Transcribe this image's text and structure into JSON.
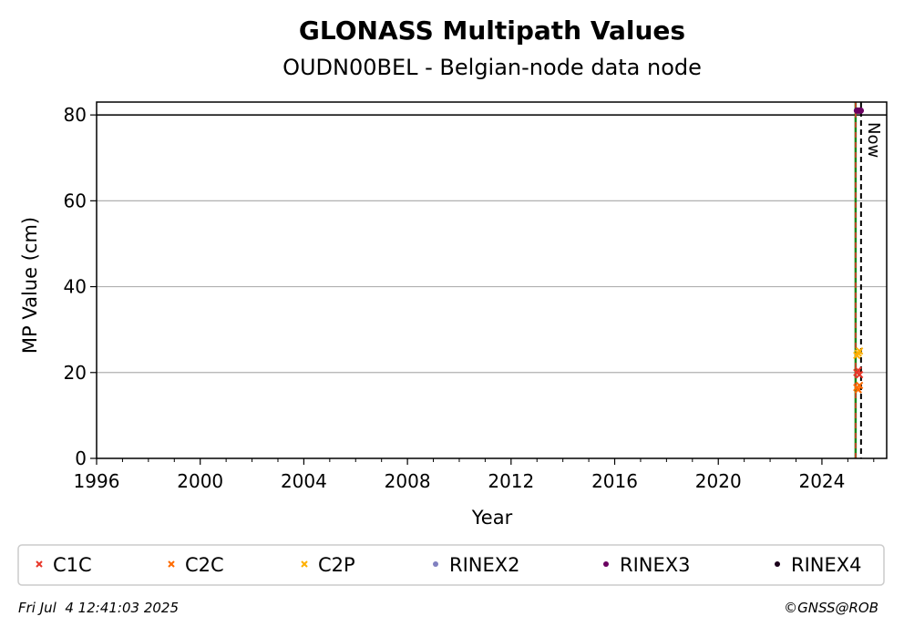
{
  "chart_data": {
    "type": "scatter",
    "title": "GLONASS Multipath Values",
    "subtitle": "OUDN00BEL - Belgian-node data node",
    "xlabel": "Year",
    "ylabel": "MP Value (cm)",
    "xlim": [
      1996,
      2026.5
    ],
    "ylim": [
      0,
      83
    ],
    "x_ticks": [
      1996,
      2000,
      2004,
      2008,
      2012,
      2016,
      2020,
      2024
    ],
    "y_ticks": [
      0,
      20,
      40,
      60,
      80
    ],
    "grid": "y",
    "threshold_line": 80,
    "now_label": "Now",
    "now_x": 2025.51,
    "start_line_x": 2025.3,
    "series": [
      {
        "name": "C1C",
        "marker": "x",
        "color": "#e8372a",
        "points": [
          [
            2025.35,
            20.0
          ],
          [
            2025.4,
            20.5
          ],
          [
            2025.45,
            19.5
          ]
        ]
      },
      {
        "name": "C2C",
        "marker": "x",
        "color": "#ff6a00",
        "points": [
          [
            2025.35,
            16.5
          ],
          [
            2025.4,
            16.0
          ],
          [
            2025.45,
            17.0
          ]
        ]
      },
      {
        "name": "C2P",
        "marker": "x",
        "color": "#ffb000",
        "points": [
          [
            2025.35,
            24.0
          ],
          [
            2025.4,
            24.5
          ],
          [
            2025.45,
            25.0
          ]
        ]
      },
      {
        "name": "RINEX2",
        "marker": "o",
        "color": "#8080c0",
        "points": []
      },
      {
        "name": "RINEX3",
        "marker": "o",
        "color": "#6a0060",
        "points": [
          [
            2025.35,
            81.0
          ],
          [
            2025.4,
            81.0
          ],
          [
            2025.45,
            81.0
          ],
          [
            2025.5,
            81.0
          ]
        ]
      },
      {
        "name": "RINEX4",
        "marker": "o",
        "color": "#1a001a",
        "points": []
      }
    ]
  },
  "footer": {
    "timestamp": "Fri Jul  4 12:41:03 2025",
    "credit": "©GNSS@ROB"
  }
}
